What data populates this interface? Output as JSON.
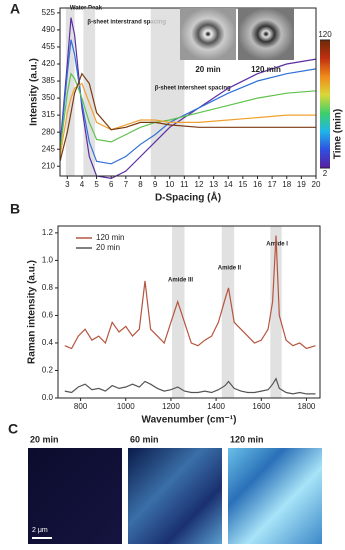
{
  "chart_data": [
    {
      "type": "line",
      "panel_label": "A",
      "x_label": "D-Spacing (Å)",
      "y_label": "Intensity (a.u.)",
      "xlim": [
        2.5,
        20
      ],
      "xticks": [
        3,
        4,
        5,
        6,
        7,
        8,
        9,
        10,
        11,
        12,
        13,
        14,
        15,
        16,
        17,
        18,
        19,
        20
      ],
      "ylim": [
        190,
        535
      ],
      "yticks": [
        210,
        245,
        280,
        315,
        350,
        385,
        420,
        455,
        490,
        525
      ],
      "x": [
        2.5,
        3,
        3.25,
        3.5,
        4,
        4.5,
        5,
        6,
        7,
        8,
        9,
        10,
        12,
        14,
        16,
        18,
        20
      ],
      "series": [
        {
          "color": "#5b2da0",
          "values": [
            250,
            420,
            515,
            480,
            330,
            230,
            190,
            185,
            200,
            230,
            260,
            290,
            330,
            370,
            400,
            420,
            430
          ]
        },
        {
          "color": "#2f70d8",
          "values": [
            245,
            400,
            470,
            440,
            340,
            260,
            220,
            215,
            230,
            255,
            275,
            300,
            330,
            360,
            385,
            400,
            410
          ]
        },
        {
          "color": "#5fc24c",
          "values": [
            240,
            360,
            400,
            390,
            350,
            300,
            265,
            260,
            275,
            290,
            300,
            305,
            320,
            335,
            350,
            360,
            365
          ]
        },
        {
          "color": "#f0a030",
          "values": [
            230,
            320,
            350,
            370,
            380,
            340,
            300,
            285,
            295,
            305,
            305,
            300,
            300,
            305,
            310,
            315,
            315
          ]
        },
        {
          "color": "#7a3a10",
          "values": [
            220,
            280,
            320,
            360,
            400,
            380,
            320,
            285,
            290,
            300,
            300,
            295,
            290,
            290,
            290,
            290,
            290
          ]
        }
      ],
      "highlights": [
        {
          "label": "Water Peak",
          "range": [
            2.9,
            3.5
          ]
        },
        {
          "label": "β-sheet interstrand spacing",
          "range": [
            4.1,
            4.9
          ]
        },
        {
          "label": "β-sheet intersheet spacing",
          "range": [
            8.7,
            11
          ]
        }
      ],
      "colorbar": {
        "label": "Time (min)",
        "ticks": [
          2,
          120
        ],
        "colors": [
          "#5b1f9e",
          "#2f4fe0",
          "#1fb5e8",
          "#3fcf6a",
          "#d8d83a",
          "#f08a1a",
          "#c03010",
          "#6b2a0a"
        ]
      },
      "insets": [
        {
          "label": "20 min"
        },
        {
          "label": "120 min"
        }
      ]
    },
    {
      "type": "line",
      "panel_label": "B",
      "x_label": "Wavenumber (cm⁻¹)",
      "y_label": "Raman intensity (a.u.)",
      "xlim": [
        700,
        1860
      ],
      "xticks": [
        800,
        1000,
        1200,
        1400,
        1600,
        1800
      ],
      "ylim": [
        0,
        1.25
      ],
      "yticks": [
        {
          "value": 0,
          "label": "0.0"
        },
        0.2,
        0.4,
        0.6,
        0.8,
        {
          "value": 1,
          "label": "1.0"
        },
        1.2
      ],
      "x": [
        730,
        760,
        790,
        820,
        850,
        880,
        910,
        940,
        970,
        1000,
        1030,
        1060,
        1085,
        1110,
        1140,
        1170,
        1200,
        1230,
        1260,
        1290,
        1320,
        1350,
        1380,
        1410,
        1440,
        1455,
        1480,
        1510,
        1540,
        1570,
        1600,
        1630,
        1650,
        1665,
        1680,
        1710,
        1740,
        1770,
        1800,
        1840
      ],
      "series": [
        {
          "name": "120 min",
          "color": "#b5553f",
          "values": [
            0.38,
            0.36,
            0.45,
            0.5,
            0.42,
            0.45,
            0.4,
            0.55,
            0.48,
            0.52,
            0.45,
            0.5,
            0.85,
            0.5,
            0.45,
            0.4,
            0.55,
            0.7,
            0.55,
            0.4,
            0.38,
            0.42,
            0.45,
            0.55,
            0.72,
            0.8,
            0.55,
            0.5,
            0.45,
            0.4,
            0.42,
            0.5,
            0.7,
            1.18,
            0.6,
            0.42,
            0.38,
            0.4,
            0.36,
            0.38
          ]
        },
        {
          "name": "20 min",
          "color": "#555555",
          "values": [
            0.05,
            0.04,
            0.08,
            0.1,
            0.06,
            0.07,
            0.05,
            0.09,
            0.07,
            0.08,
            0.1,
            0.08,
            0.12,
            0.1,
            0.07,
            0.05,
            0.06,
            0.08,
            0.05,
            0.04,
            0.04,
            0.05,
            0.04,
            0.06,
            0.09,
            0.12,
            0.07,
            0.05,
            0.04,
            0.04,
            0.05,
            0.06,
            0.1,
            0.14,
            0.07,
            0.04,
            0.03,
            0.04,
            0.03,
            0.03
          ]
        }
      ],
      "highlights": [
        {
          "label": "Amide III",
          "range": [
            1205,
            1260
          ]
        },
        {
          "label": "Amide II",
          "range": [
            1425,
            1480
          ]
        },
        {
          "label": "Amide I",
          "range": [
            1640,
            1690
          ]
        }
      ]
    }
  ],
  "images_panel": {
    "panel_label": "C",
    "images": [
      {
        "label": "20 min"
      },
      {
        "label": "60 min"
      },
      {
        "label": "120 min"
      }
    ],
    "scale_bar": "2 μm"
  }
}
